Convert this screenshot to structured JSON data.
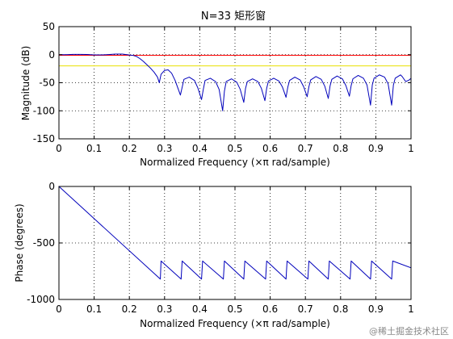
{
  "watermark": "@稀土掘金技术社区",
  "chart_data": [
    {
      "type": "line",
      "title": "N=33 矩形窗",
      "xlabel": "Normalized Frequency  (×π rad/sample)",
      "ylabel": "Magnitude (dB)",
      "xlim": [
        0,
        1
      ],
      "ylim": [
        -150,
        50
      ],
      "xticks": [
        "0",
        "0.1",
        "0.2",
        "0.3",
        "0.4",
        "0.5",
        "0.6",
        "0.7",
        "0.8",
        "0.9",
        "1"
      ],
      "yticks": [
        "50",
        "0",
        "-50",
        "-100",
        "-150"
      ],
      "grid": true,
      "colors": {
        "response": "#0000bb",
        "ref_red": "#ff0000",
        "ref_yellow": "#e8e000"
      },
      "ref_lines": [
        {
          "y": -1,
          "color": "#ff0000"
        },
        {
          "y": -20,
          "color": "#e8e000"
        }
      ],
      "series": [
        {
          "x": [
            0,
            0.02,
            0.04,
            0.06,
            0.08,
            0.1,
            0.12,
            0.14,
            0.16,
            0.18,
            0.2,
            0.21,
            0.22,
            0.23,
            0.24,
            0.25,
            0.26,
            0.27,
            0.28,
            0.285,
            0.29,
            0.3,
            0.31,
            0.32,
            0.33,
            0.345,
            0.35,
            0.355,
            0.37,
            0.385,
            0.395,
            0.405,
            0.41,
            0.415,
            0.43,
            0.445,
            0.455,
            0.465,
            0.47,
            0.475,
            0.49,
            0.505,
            0.515,
            0.525,
            0.53,
            0.535,
            0.55,
            0.565,
            0.575,
            0.585,
            0.59,
            0.595,
            0.61,
            0.625,
            0.635,
            0.645,
            0.65,
            0.655,
            0.67,
            0.685,
            0.695,
            0.705,
            0.71,
            0.715,
            0.73,
            0.745,
            0.755,
            0.765,
            0.77,
            0.775,
            0.79,
            0.805,
            0.815,
            0.825,
            0.83,
            0.835,
            0.85,
            0.865,
            0.875,
            0.885,
            0.89,
            0.895,
            0.91,
            0.925,
            0.935,
            0.945,
            0.95,
            0.955,
            0.97,
            0.975,
            0.985,
            0.995,
            1.0
          ],
          "y": [
            0,
            0,
            0.5,
            0.6,
            0.3,
            -0.3,
            -0.4,
            0.2,
            1.0,
            1.0,
            -0.5,
            -1.2,
            -3,
            -7,
            -12,
            -18,
            -24,
            -31,
            -40,
            -50,
            -35,
            -28,
            -27,
            -33,
            -46,
            -72,
            -58,
            -44,
            -40,
            -46,
            -60,
            -80,
            -62,
            -46,
            -42,
            -48,
            -62,
            -100,
            -65,
            -48,
            -43,
            -49,
            -62,
            -85,
            -60,
            -48,
            -43,
            -48,
            -60,
            -82,
            -60,
            -47,
            -42,
            -47,
            -58,
            -76,
            -58,
            -46,
            -40,
            -45,
            -57,
            -75,
            -57,
            -45,
            -39,
            -44,
            -56,
            -78,
            -56,
            -44,
            -38,
            -43,
            -55,
            -74,
            -55,
            -43,
            -37,
            -42,
            -54,
            -90,
            -54,
            -42,
            -36,
            -40,
            -52,
            -90,
            -54,
            -42,
            -36,
            -39,
            -48,
            -45,
            -42
          ]
        }
      ]
    },
    {
      "type": "line",
      "title": "",
      "xlabel": "Normalized Frequency  (×π rad/sample)",
      "ylabel": "Phase (degrees)",
      "xlim": [
        0,
        1
      ],
      "ylim": [
        -1000,
        0
      ],
      "xticks": [
        "0",
        "0.1",
        "0.2",
        "0.3",
        "0.4",
        "0.5",
        "0.6",
        "0.7",
        "0.8",
        "0.9",
        "1"
      ],
      "yticks": [
        "0",
        "-500",
        "-1000"
      ],
      "grid": true,
      "colors": {
        "response": "#0000bb"
      },
      "series": [
        {
          "x": [
            0,
            0.288,
            0.288,
            0.29,
            0.347,
            0.347,
            0.35,
            0.405,
            0.405,
            0.408,
            0.467,
            0.467,
            0.47,
            0.525,
            0.525,
            0.528,
            0.587,
            0.587,
            0.59,
            0.645,
            0.645,
            0.648,
            0.707,
            0.707,
            0.71,
            0.765,
            0.765,
            0.768,
            0.827,
            0.827,
            0.83,
            0.885,
            0.885,
            0.888,
            0.945,
            0.945,
            0.948,
            1.0
          ],
          "y": [
            0,
            -820,
            -820,
            -660,
            -820,
            -820,
            -660,
            -820,
            -820,
            -660,
            -820,
            -820,
            -660,
            -820,
            -820,
            -660,
            -820,
            -820,
            -660,
            -820,
            -820,
            -660,
            -820,
            -820,
            -660,
            -820,
            -820,
            -660,
            -820,
            -820,
            -660,
            -820,
            -820,
            -660,
            -820,
            -820,
            -660,
            -720
          ]
        }
      ]
    }
  ]
}
